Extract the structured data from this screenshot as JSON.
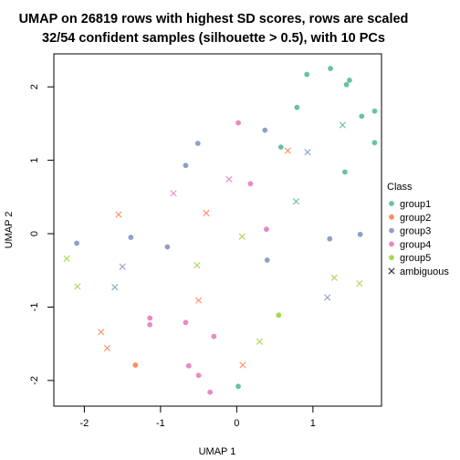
{
  "chart_data": {
    "type": "scatter",
    "title_lines": [
      "UMAP on 26819 rows with highest SD scores, rows are scaled",
      "32/54 confident samples (silhouette > 0.5), with 10 PCs"
    ],
    "xlabel": "UMAP 1",
    "ylabel": "UMAP 2",
    "xlim": [
      -2.4,
      1.9
    ],
    "ylim": [
      -2.35,
      2.45
    ],
    "xticks": [
      -2,
      -1,
      0,
      1
    ],
    "yticks": [
      -2,
      -1,
      0,
      1,
      2
    ],
    "grid": false,
    "legend": {
      "title": "Class",
      "position": "right",
      "entries": [
        {
          "label": "group1",
          "color": "#66C2A5",
          "marker": "dot"
        },
        {
          "label": "group2",
          "color": "#FC8D62",
          "marker": "dot"
        },
        {
          "label": "group3",
          "color": "#8DA0CB",
          "marker": "dot"
        },
        {
          "label": "group4",
          "color": "#E78AC3",
          "marker": "dot"
        },
        {
          "label": "group5",
          "color": "#A6D854",
          "marker": "dot"
        },
        {
          "label": "ambiguous",
          "color": "#333333",
          "marker": "x"
        }
      ]
    },
    "series": [
      {
        "name": "group1",
        "color": "#66C2A5",
        "marker": "dot",
        "points": [
          [
            1.23,
            2.25
          ],
          [
            0.92,
            2.17
          ],
          [
            1.48,
            2.09
          ],
          [
            1.44,
            2.03
          ],
          [
            1.64,
            1.6
          ],
          [
            1.81,
            1.67
          ],
          [
            0.79,
            1.72
          ],
          [
            1.81,
            1.24
          ],
          [
            1.42,
            0.84
          ],
          [
            0.58,
            1.18
          ],
          [
            0.02,
            -2.08
          ]
        ]
      },
      {
        "name": "group2",
        "color": "#FC8D62",
        "marker": "dot",
        "points": [
          [
            -1.33,
            -1.79
          ]
        ]
      },
      {
        "name": "group3",
        "color": "#8DA0CB",
        "marker": "dot",
        "points": [
          [
            0.37,
            1.41
          ],
          [
            -0.51,
            1.23
          ],
          [
            -0.67,
            0.93
          ],
          [
            -2.1,
            -0.13
          ],
          [
            -1.39,
            -0.05
          ],
          [
            -0.91,
            -0.18
          ],
          [
            0.4,
            -0.36
          ],
          [
            1.22,
            -0.07
          ],
          [
            1.62,
            -0.01
          ]
        ]
      },
      {
        "name": "group4",
        "color": "#E78AC3",
        "marker": "dot",
        "points": [
          [
            0.02,
            1.51
          ],
          [
            0.18,
            0.68
          ],
          [
            0.39,
            0.06
          ],
          [
            -1.14,
            -1.15
          ],
          [
            -1.14,
            -1.24
          ],
          [
            -0.67,
            -1.21
          ],
          [
            -0.3,
            -1.4
          ],
          [
            -0.63,
            -1.8
          ],
          [
            -0.5,
            -1.93
          ],
          [
            -0.35,
            -2.16
          ]
        ]
      },
      {
        "name": "group5",
        "color": "#A6D854",
        "marker": "dot",
        "points": [
          [
            0.55,
            -1.11
          ]
        ]
      },
      {
        "name": "ambiguous",
        "color": "#FC8D62",
        "marker": "x",
        "points": [
          [
            0.67,
            1.13
          ],
          [
            -1.55,
            0.26
          ],
          [
            -0.4,
            0.28
          ],
          [
            -1.78,
            -1.34
          ],
          [
            -1.7,
            -1.56
          ],
          [
            -0.5,
            -0.91
          ],
          [
            0.08,
            -1.79
          ]
        ]
      },
      {
        "name": "ambiguous",
        "color": "#66C2A5",
        "marker": "x",
        "points": [
          [
            1.39,
            1.48
          ],
          [
            0.78,
            0.44
          ]
        ]
      },
      {
        "name": "ambiguous",
        "color": "#8DA0CB",
        "marker": "x",
        "points": [
          [
            0.93,
            1.11
          ],
          [
            -1.5,
            -0.45
          ],
          [
            -1.6,
            -0.73
          ],
          [
            1.19,
            -0.87
          ]
        ]
      },
      {
        "name": "ambiguous",
        "color": "#E78AC3",
        "marker": "x",
        "points": [
          [
            -0.1,
            0.74
          ],
          [
            -0.83,
            0.55
          ]
        ]
      },
      {
        "name": "ambiguous",
        "color": "#A6D854",
        "marker": "x",
        "points": [
          [
            -2.23,
            -0.34
          ],
          [
            -2.09,
            -0.72
          ],
          [
            -0.52,
            -0.43
          ],
          [
            0.07,
            -0.04
          ],
          [
            1.28,
            -0.6
          ],
          [
            1.61,
            -0.68
          ],
          [
            0.3,
            -1.47
          ]
        ]
      }
    ]
  }
}
